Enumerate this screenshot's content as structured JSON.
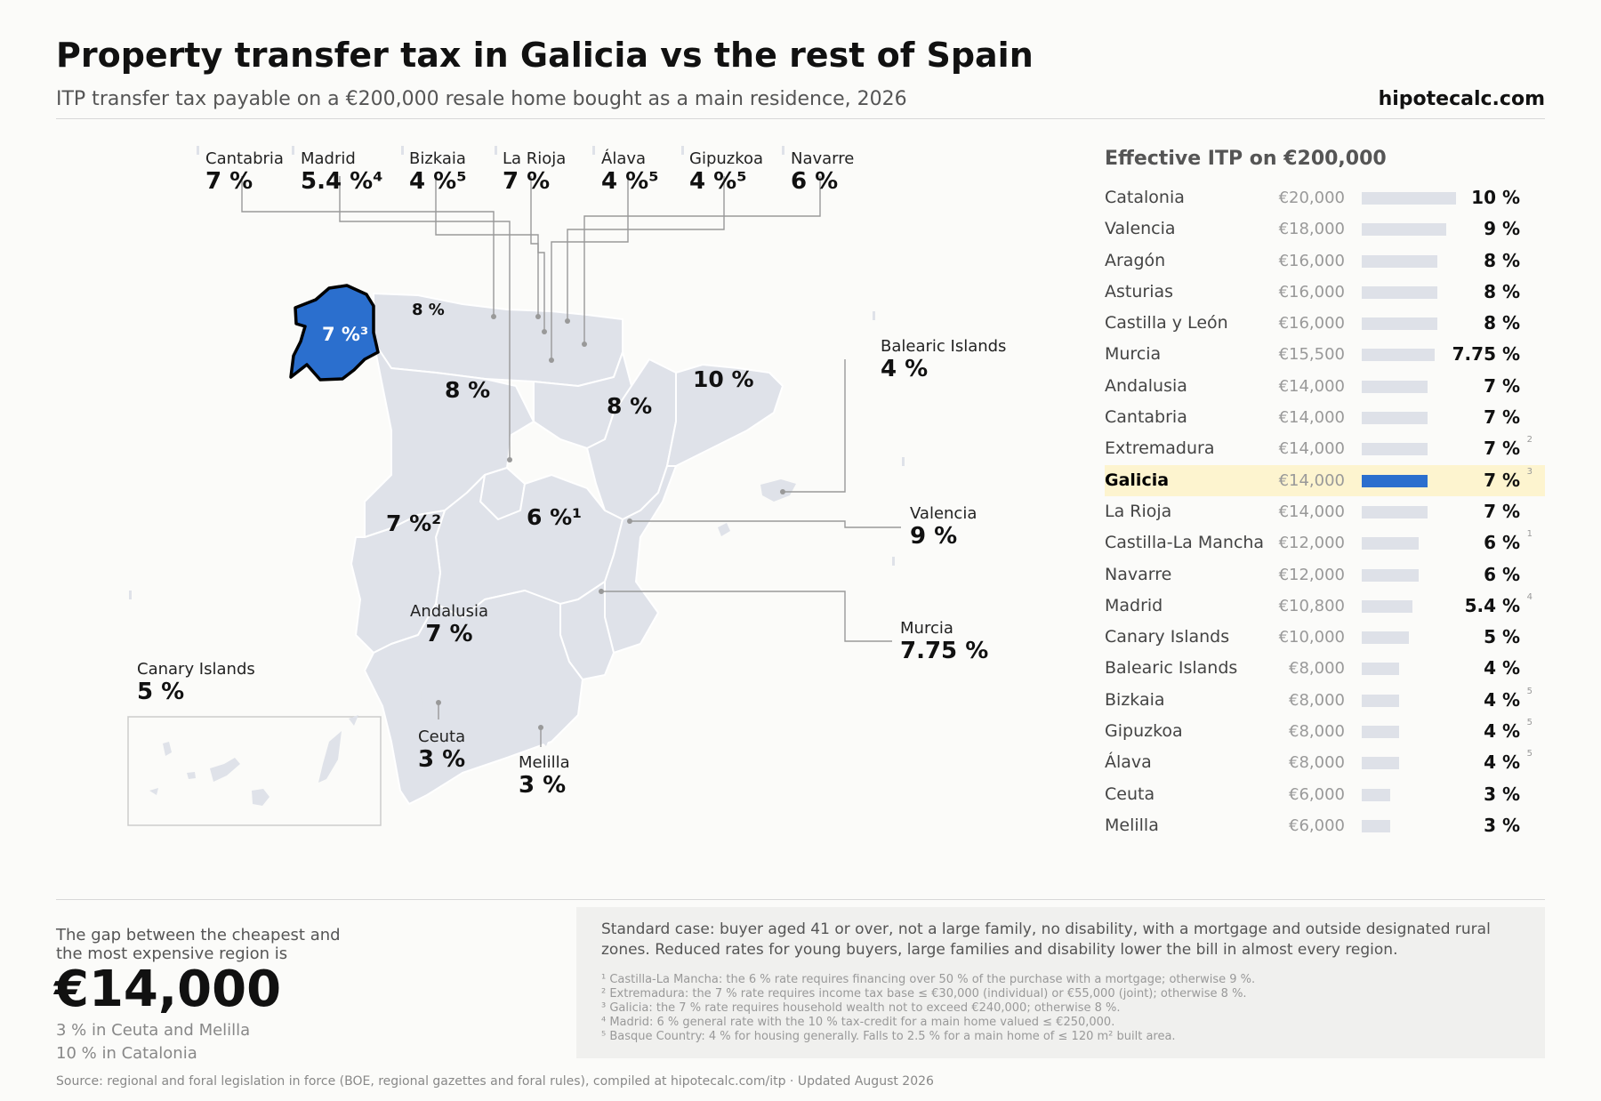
{
  "header": {
    "title": "Property transfer tax in Galicia vs the rest of Spain",
    "subtitle": "ITP transfer tax payable on a €200,000 resale home bought as a main residence, 2026",
    "brand": "hipotecalc.com"
  },
  "colors": {
    "highlight": "#2b6fce",
    "region_fill": "#dfe2e9",
    "row_highlight": "#fdf4cf",
    "bar": "#dee1e8"
  },
  "map": {
    "top_callouts": [
      {
        "name": "Cantabria",
        "value": "7 %"
      },
      {
        "name": "Madrid",
        "value": "5.4 %⁴"
      },
      {
        "name": "Bizkaia",
        "value": "4 %⁵"
      },
      {
        "name": "La Rioja",
        "value": "7 %"
      },
      {
        "name": "Álava",
        "value": "4 %⁵"
      },
      {
        "name": "Gipuzkoa",
        "value": "4 %⁵"
      },
      {
        "name": "Navarre",
        "value": "6 %"
      }
    ],
    "side_callouts": [
      {
        "name": "Balearic Islands",
        "value": "4 %"
      },
      {
        "name": "Valencia",
        "value": "9 %"
      },
      {
        "name": "Murcia",
        "value": "7.75 %"
      },
      {
        "name": "Canary Islands",
        "value": "5 %"
      },
      {
        "name": "Ceuta",
        "value": "3 %"
      },
      {
        "name": "Melilla",
        "value": "3 %"
      },
      {
        "name": "Andalusia",
        "value": "7 %"
      }
    ],
    "inline_labels": {
      "galicia": "7 %³",
      "asturias": "8 %",
      "castilla_leon": "8 %",
      "aragon": "8 %",
      "catalonia": "10 %",
      "extremadura": "7 %²",
      "castilla_la_mancha": "6 %¹"
    }
  },
  "chart_data": {
    "type": "bar",
    "title": "Effective ITP on €200,000",
    "highlight": "Galicia",
    "xlim": [
      0,
      20000
    ],
    "rows": [
      {
        "region": "Catalonia",
        "amount": 20000,
        "amount_label": "€20,000",
        "rate": "10 %",
        "note": ""
      },
      {
        "region": "Valencia",
        "amount": 18000,
        "amount_label": "€18,000",
        "rate": "9 %",
        "note": ""
      },
      {
        "region": "Aragón",
        "amount": 16000,
        "amount_label": "€16,000",
        "rate": "8 %",
        "note": ""
      },
      {
        "region": "Asturias",
        "amount": 16000,
        "amount_label": "€16,000",
        "rate": "8 %",
        "note": ""
      },
      {
        "region": "Castilla y León",
        "amount": 16000,
        "amount_label": "€16,000",
        "rate": "8 %",
        "note": ""
      },
      {
        "region": "Murcia",
        "amount": 15500,
        "amount_label": "€15,500",
        "rate": "7.75 %",
        "note": ""
      },
      {
        "region": "Andalusia",
        "amount": 14000,
        "amount_label": "€14,000",
        "rate": "7 %",
        "note": ""
      },
      {
        "region": "Cantabria",
        "amount": 14000,
        "amount_label": "€14,000",
        "rate": "7 %",
        "note": ""
      },
      {
        "region": "Extremadura",
        "amount": 14000,
        "amount_label": "€14,000",
        "rate": "7 %",
        "note": "2"
      },
      {
        "region": "Galicia",
        "amount": 14000,
        "amount_label": "€14,000",
        "rate": "7 %",
        "note": "3"
      },
      {
        "region": "La Rioja",
        "amount": 14000,
        "amount_label": "€14,000",
        "rate": "7 %",
        "note": ""
      },
      {
        "region": "Castilla-La Mancha",
        "amount": 12000,
        "amount_label": "€12,000",
        "rate": "6 %",
        "note": "1"
      },
      {
        "region": "Navarre",
        "amount": 12000,
        "amount_label": "€12,000",
        "rate": "6 %",
        "note": ""
      },
      {
        "region": "Madrid",
        "amount": 10800,
        "amount_label": "€10,800",
        "rate": "5.4 %",
        "note": "4"
      },
      {
        "region": "Canary Islands",
        "amount": 10000,
        "amount_label": "€10,000",
        "rate": "5 %",
        "note": ""
      },
      {
        "region": "Balearic Islands",
        "amount": 8000,
        "amount_label": "€8,000",
        "rate": "4 %",
        "note": ""
      },
      {
        "region": "Bizkaia",
        "amount": 8000,
        "amount_label": "€8,000",
        "rate": "4 %",
        "note": "5"
      },
      {
        "region": "Gipuzkoa",
        "amount": 8000,
        "amount_label": "€8,000",
        "rate": "4 %",
        "note": "5"
      },
      {
        "region": "Álava",
        "amount": 8000,
        "amount_label": "€8,000",
        "rate": "4 %",
        "note": "5"
      },
      {
        "region": "Ceuta",
        "amount": 6000,
        "amount_label": "€6,000",
        "rate": "3 %",
        "note": ""
      },
      {
        "region": "Melilla",
        "amount": 6000,
        "amount_label": "€6,000",
        "rate": "3 %",
        "note": ""
      }
    ]
  },
  "gap": {
    "label": "The gap between the cheapest and the most expensive region is",
    "value": "€14,000",
    "min_line": "3 % in Ceuta and Melilla",
    "max_line": "10 % in Catalonia"
  },
  "notes": {
    "main": "Standard case: buyer aged 41 or over, not a large family, no disability, with a mortgage and outside designated rural zones. Reduced rates for young buyers, large families and disability lower the bill in almost every region.",
    "footnotes": [
      "¹ Castilla-La Mancha: the 6 % rate requires financing over 50 % of the purchase with a mortgage; otherwise 9 %.",
      "² Extremadura: the 7 % rate requires income tax base ≤ €30,000 (individual) or €55,000 (joint); otherwise 8 %.",
      "³ Galicia: the 7 % rate requires household wealth not to exceed €240,000; otherwise 8 %.",
      "⁴ Madrid: 6 % general rate with the 10 % tax-credit for a main home valued ≤ €250,000.",
      "⁵ Basque Country: 4 % for housing generally. Falls to 2.5 % for a main home of ≤ 120 m² built area."
    ]
  },
  "source": "Source: regional and foral legislation in force (BOE, regional gazettes and foral rules), compiled at hipotecalc.com/itp · Updated August 2026"
}
